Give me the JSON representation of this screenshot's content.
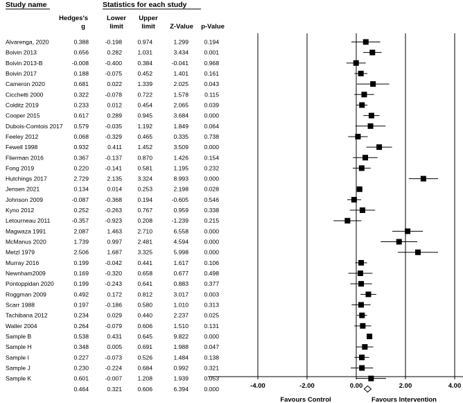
{
  "headers": {
    "study_name": "Study name",
    "stats_title": "Statistics for each study",
    "col_g_1": "Hedges's",
    "col_g_2": "g",
    "col_lower_1": "Lower",
    "col_lower_2": "limit",
    "col_upper_1": "Upper",
    "col_upper_2": "limit",
    "col_z": "Z-Value",
    "col_p": "p-Value"
  },
  "favours": {
    "left": "Favours Control",
    "right": "Favours Intervention"
  },
  "chart_data": {
    "type": "forest",
    "xlim": [
      -4,
      4
    ],
    "xticks": [
      "-4.00",
      "-2.00",
      "0.00",
      "2.00",
      "4.00"
    ],
    "xtick_values": [
      -4,
      -2,
      0,
      2,
      4
    ],
    "rows": [
      {
        "study": "Alvarenga, 2020",
        "g": "0.388",
        "lower": "-0.198",
        "upper": "0.974",
        "z": "1.299",
        "p": "0.194"
      },
      {
        "study": "Boivin 2013",
        "g": "0.656",
        "lower": "0.282",
        "upper": "1.031",
        "z": "3.434",
        "p": "0.001"
      },
      {
        "study": "Boivin 2013-B",
        "g": "-0.008",
        "lower": "-0.400",
        "upper": "0.384",
        "z": "-0.041",
        "p": "0.968"
      },
      {
        "study": "Boivin 2017",
        "g": "0.188",
        "lower": "-0.075",
        "upper": "0.452",
        "z": "1.401",
        "p": "0.161"
      },
      {
        "study": "Cameron 2020",
        "g": "0.681",
        "lower": "0.022",
        "upper": "1.339",
        "z": "2.025",
        "p": "0.043"
      },
      {
        "study": "Cicchetti 2000",
        "g": "0.322",
        "lower": "-0.078",
        "upper": "0.722",
        "z": "1.578",
        "p": "0.115"
      },
      {
        "study": "Colditz 2019",
        "g": "0.233",
        "lower": "0.012",
        "upper": "0.454",
        "z": "2.065",
        "p": "0.039"
      },
      {
        "study": "Cooper 2015",
        "g": "0.617",
        "lower": "0.289",
        "upper": "0.945",
        "z": "3.684",
        "p": "0.000"
      },
      {
        "study": "Dubois-Comtois 2017",
        "g": "0.579",
        "lower": "-0.035",
        "upper": "1.192",
        "z": "1.849",
        "p": "0.064"
      },
      {
        "study": "Feeley 2012",
        "g": "0.068",
        "lower": "-0.329",
        "upper": "0.465",
        "z": "0.335",
        "p": "0.738"
      },
      {
        "study": "Fewell 1998",
        "g": "0.932",
        "lower": "0.411",
        "upper": "1.452",
        "z": "3.509",
        "p": "0.000"
      },
      {
        "study": "Flierman 2016",
        "g": "0.367",
        "lower": "-0.137",
        "upper": "0.870",
        "z": "1.426",
        "p": "0.154"
      },
      {
        "study": "Fong 2019",
        "g": "0.220",
        "lower": "-0.141",
        "upper": "0.581",
        "z": "1.195",
        "p": "0.232"
      },
      {
        "study": "Hutchings 2017",
        "g": "2.729",
        "lower": "2.135",
        "upper": "3.324",
        "z": "8.993",
        "p": "0.000"
      },
      {
        "study": "Jensen 2021",
        "g": "0.134",
        "lower": "0.014",
        "upper": "0.253",
        "z": "2.198",
        "p": "0.028"
      },
      {
        "study": "Johnson 2009",
        "g": "-0.087",
        "lower": "-0.368",
        "upper": "0.194",
        "z": "-0.605",
        "p": "0.546"
      },
      {
        "study": "Kyno 2012",
        "g": "0.252",
        "lower": "-0.263",
        "upper": "0.767",
        "z": "0.959",
        "p": "0.338"
      },
      {
        "study": "Letourneau 2011",
        "g": "-0.357",
        "lower": "-0.923",
        "upper": "0.208",
        "z": "-1.239",
        "p": "0.215"
      },
      {
        "study": "Magwaza 1991",
        "g": "2.087",
        "lower": "1.463",
        "upper": "2.710",
        "z": "6.558",
        "p": "0.000"
      },
      {
        "study": "McManus 2020",
        "g": "1.739",
        "lower": "0.997",
        "upper": "2.481",
        "z": "4.594",
        "p": "0.000"
      },
      {
        "study": "Metzl 1979",
        "g": "2.506",
        "lower": "1.687",
        "upper": "3.325",
        "z": "5.998",
        "p": "0.000"
      },
      {
        "study": "Murray 2016",
        "g": "0.199",
        "lower": "-0.042",
        "upper": "0.441",
        "z": "1.617",
        "p": "0.106"
      },
      {
        "study": "Newnham2009",
        "g": "0.169",
        "lower": "-0.320",
        "upper": "0.658",
        "z": "0.677",
        "p": "0.498"
      },
      {
        "study": "Pontoppidan 2020",
        "g": "0.199",
        "lower": "-0.243",
        "upper": "0.641",
        "z": "0.883",
        "p": "0.377"
      },
      {
        "study": "Roggman 2009",
        "g": "0.492",
        "lower": "0.172",
        "upper": "0.812",
        "z": "3.017",
        "p": "0.003"
      },
      {
        "study": "Scarr 1988",
        "g": "0.197",
        "lower": "-0.186",
        "upper": "0.580",
        "z": "1.010",
        "p": "0.313"
      },
      {
        "study": "Tachibana 2012",
        "g": "0.234",
        "lower": "0.029",
        "upper": "0.440",
        "z": "2.237",
        "p": "0.025"
      },
      {
        "study": "Waller 2004",
        "g": "0.264",
        "lower": "-0.079",
        "upper": "0.606",
        "z": "1.510",
        "p": "0.131"
      },
      {
        "study": "Sample B",
        "g": "0.538",
        "lower": "0.431",
        "upper": "0.645",
        "z": "9.822",
        "p": "0.000"
      },
      {
        "study": "Sample H",
        "g": "0.348",
        "lower": "0.005",
        "upper": "0.691",
        "z": "1.988",
        "p": "0.047"
      },
      {
        "study": "Sample I",
        "g": "0.227",
        "lower": "-0.073",
        "upper": "0.526",
        "z": "1.484",
        "p": "0.138"
      },
      {
        "study": "Sample J",
        "g": "0.230",
        "lower": "-0.224",
        "upper": "0.684",
        "z": "0.992",
        "p": "0.321"
      },
      {
        "study": "Sample K",
        "g": "0.601",
        "lower": "-0.007",
        "upper": "1.208",
        "z": "1.939",
        "p": "0.053"
      }
    ],
    "summary": {
      "study": "",
      "g": "0.464",
      "lower": "0.321",
      "upper": "0.606",
      "z": "6.394",
      "p": "0.000"
    }
  }
}
